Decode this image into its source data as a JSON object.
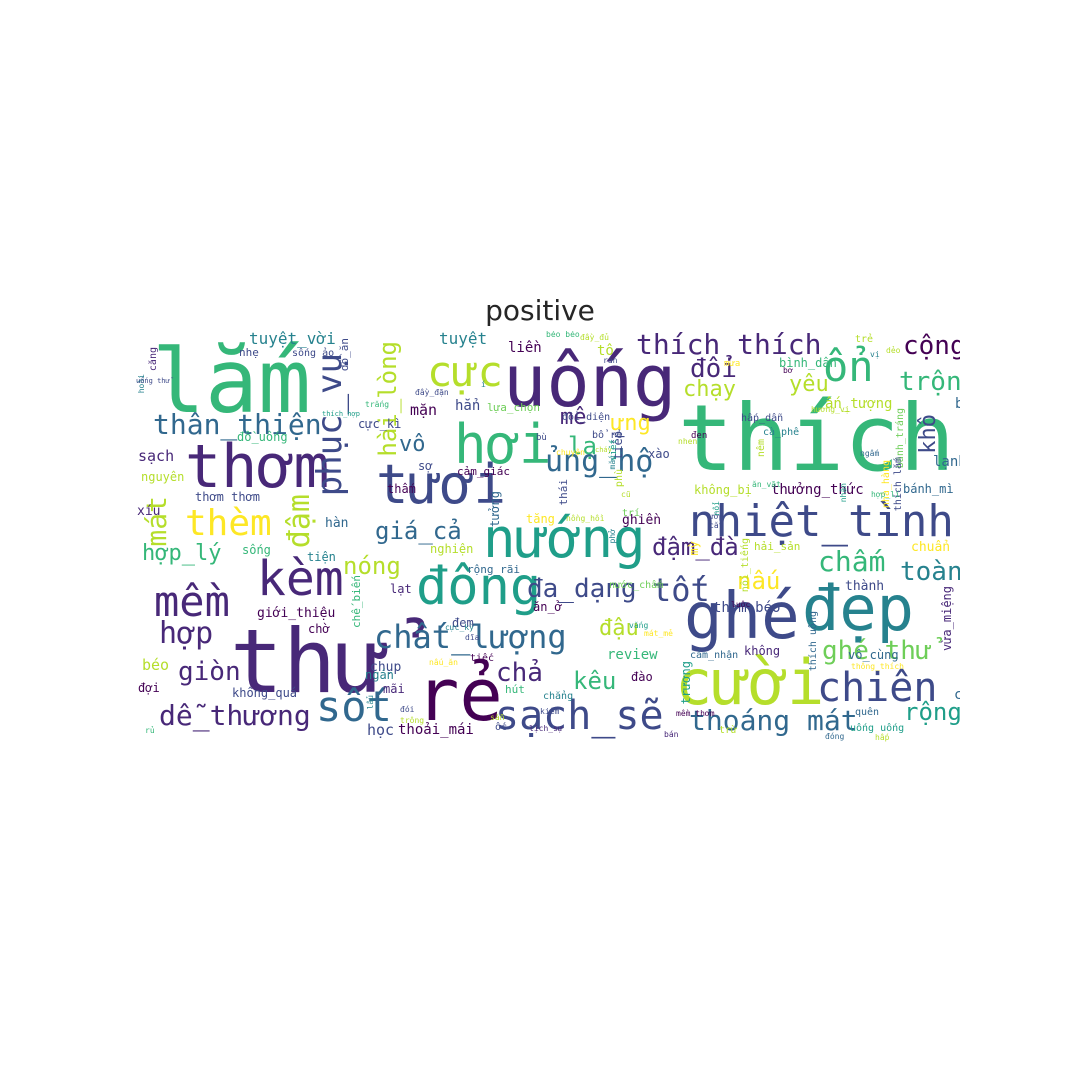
{
  "title": "positive",
  "palette": {
    "dark_purple": "#440154",
    "indigo": "#482878",
    "blue": "#3e4a89",
    "slate": "#31688e",
    "teal": "#26828e",
    "green_teal": "#1f9e89",
    "green": "#35b779",
    "lime_green": "#6ece58",
    "yellow_green": "#b5de2b",
    "yellow": "#fde725"
  },
  "words": [
    {
      "text": "thích",
      "c": "#35b779"
    },
    {
      "text": "thử",
      "c": "#482878"
    },
    {
      "text": "lắm",
      "c": "#35b779"
    },
    {
      "text": "uống",
      "c": "#482878"
    },
    {
      "text": "rẻ",
      "c": "#440154"
    },
    {
      "text": "ghé",
      "c": "#3e4a89"
    },
    {
      "text": "cười",
      "c": "#b5de2b"
    },
    {
      "text": "đẹp",
      "c": "#26828e"
    },
    {
      "text": "thơm",
      "c": "#482878"
    },
    {
      "text": "tươi",
      "c": "#3e4a89"
    },
    {
      "text": "hơi",
      "c": "#35b779"
    },
    {
      "text": "nướng",
      "c": "#1f9e89"
    },
    {
      "text": "đông",
      "c": "#1f9e89"
    },
    {
      "text": "nhiệt_tình",
      "c": "#3e4a89"
    },
    {
      "text": "kèm",
      "c": "#482878"
    },
    {
      "text": "mềm",
      "c": "#482878"
    },
    {
      "text": "sạch_sẽ",
      "c": "#3e4a89"
    },
    {
      "text": "chiên",
      "c": "#3e4a89"
    },
    {
      "text": "sốt",
      "c": "#31688e"
    },
    {
      "text": "phục_vụ",
      "c": "#3e4a89"
    },
    {
      "text": "cực",
      "c": "#b5de2b"
    },
    {
      "text": "thèm",
      "c": "#fde725"
    },
    {
      "text": "ổn",
      "c": "#35b779"
    },
    {
      "text": "chất_lượng",
      "c": "#31688e"
    },
    {
      "text": "thoáng mát",
      "c": "#31688e"
    },
    {
      "text": "thân_thiện",
      "c": "#31688e"
    },
    {
      "text": "ủng_hộ",
      "c": "#31688e"
    },
    {
      "text": "thích thích",
      "c": "#482878"
    },
    {
      "text": "tốt",
      "c": "#3e4a89"
    },
    {
      "text": "đa_dạng",
      "c": "#3e4a89"
    },
    {
      "text": "hài_lòng",
      "c": "#b5de2b"
    },
    {
      "text": "dễ_thương",
      "c": "#482878"
    },
    {
      "text": "hợp",
      "c": "#482878"
    },
    {
      "text": "mát",
      "c": "#b5de2b"
    },
    {
      "text": "đậm",
      "c": "#b5de2b"
    },
    {
      "text": "chả",
      "c": "#482878"
    },
    {
      "text": "giòn",
      "c": "#482878"
    },
    {
      "text": "toàn",
      "c": "#26828e"
    },
    {
      "text": "chấm",
      "c": "#35b779"
    },
    {
      "text": "giá_cả",
      "c": "#31688e"
    },
    {
      "text": "đậm_đà",
      "c": "#482878"
    },
    {
      "text": "cộng",
      "c": "#440154"
    },
    {
      "text": "trộn",
      "c": "#35b779"
    },
    {
      "text": "ghé thử",
      "c": "#6ece58"
    },
    {
      "text": "kêu",
      "c": "#35b779"
    },
    {
      "text": "lạ",
      "c": "#35b779"
    },
    {
      "text": "vô",
      "c": "#31688e"
    },
    {
      "text": "mê",
      "c": "#482878"
    },
    {
      "text": "ưng",
      "c": "#fde725"
    },
    {
      "text": "đổi",
      "c": "#482878"
    },
    {
      "text": "chạy",
      "c": "#b5de2b"
    },
    {
      "text": "yêu",
      "c": "#b5de2b"
    },
    {
      "text": "khô",
      "c": "#3e4a89"
    },
    {
      "text": "nóng",
      "c": "#b5de2b"
    },
    {
      "text": "nấu",
      "c": "#fde725"
    },
    {
      "text": "đậu",
      "c": "#b5de2b"
    },
    {
      "text": "rộng",
      "c": "#1f9e89"
    },
    {
      "text": "hợp_lý",
      "c": "#35b779"
    },
    {
      "text": "tuyệt_vời",
      "c": "#26828e"
    },
    {
      "text": "tuyệt",
      "c": "#26828e"
    },
    {
      "text": "liền",
      "c": "#440154"
    },
    {
      "text": "tô",
      "c": "#b5de2b"
    },
    {
      "text": "bình_dân",
      "c": "#35b779"
    },
    {
      "text": "trẻ",
      "c": "#b5de2b"
    },
    {
      "text": "ấn_tượng",
      "c": "#b5de2b"
    },
    {
      "text": "bảo",
      "c": "#31688e"
    },
    {
      "text": "hẳn",
      "c": "#3e4a89"
    },
    {
      "text": "lựa_chọn",
      "c": "#6ece58"
    },
    {
      "text": "mặn",
      "c": "#440154"
    },
    {
      "text": "thưởng_thức",
      "c": "#440154"
    },
    {
      "text": "lạnh",
      "c": "#31688e"
    },
    {
      "text": "bánh_mì",
      "c": "#31688e"
    },
    {
      "text": "sạch",
      "c": "#482878"
    },
    {
      "text": "nguyên",
      "c": "#b5de2b"
    },
    {
      "text": "thơm thơm",
      "c": "#3e4a89"
    },
    {
      "text": "xíu",
      "c": "#482878"
    },
    {
      "text": "sống",
      "c": "#35b779"
    },
    {
      "text": "tiện",
      "c": "#26828e"
    },
    {
      "text": "hàn",
      "c": "#31688e"
    },
    {
      "text": "giới_thiệu",
      "c": "#440154"
    },
    {
      "text": "chờ",
      "c": "#440154"
    },
    {
      "text": "béo",
      "c": "#b5de2b"
    },
    {
      "text": "đợi",
      "c": "#440154"
    },
    {
      "text": "không_quá",
      "c": "#3e4a89"
    },
    {
      "text": "chụp",
      "c": "#3e4a89"
    },
    {
      "text": "mãi",
      "c": "#482878"
    },
    {
      "text": "học",
      "c": "#3e4a89"
    },
    {
      "text": "thoải_mái",
      "c": "#440154"
    },
    {
      "text": "review",
      "c": "#35b779"
    },
    {
      "text": "đào",
      "c": "#440154"
    },
    {
      "text": "không",
      "c": "#482878"
    },
    {
      "text": "chê",
      "c": "#31688e"
    },
    {
      "text": "quên",
      "c": "#31688e"
    },
    {
      "text": "vừa_miệng",
      "c": "#482878"
    },
    {
      "text": "thành",
      "c": "#3e4a89"
    },
    {
      "text": "chuẩn",
      "c": "#fde725"
    },
    {
      "text": "hải_sản",
      "c": "#b5de2b"
    },
    {
      "text": "ghiền",
      "c": "#440154"
    },
    {
      "text": "không_bị",
      "c": "#b5de2b"
    },
    {
      "text": "nghiện",
      "c": "#b5de2b"
    },
    {
      "text": "rộng_rãi",
      "c": "#31688e"
    },
    {
      "text": "lạt",
      "c": "#482878"
    },
    {
      "text": "ăn_ở",
      "c": "#440154"
    },
    {
      "text": "đem",
      "c": "#3e4a89"
    },
    {
      "text": "xào",
      "c": "#3e4a89"
    },
    {
      "text": "tiếp",
      "c": "#3e4a89"
    },
    {
      "text": "cảm_giác",
      "c": "#440154"
    },
    {
      "text": "thấm",
      "c": "#440154"
    },
    {
      "text": "tăng",
      "c": "#fde725"
    },
    {
      "text": "tưởng",
      "c": "#31688e"
    },
    {
      "text": "sợ",
      "c": "#3e4a89"
    },
    {
      "text": "cực_kì",
      "c": "#3e4a89"
    },
    {
      "text": "đồ_uống",
      "c": "#35b779"
    },
    {
      "text": "đồ_ăn",
      "c": "#3e4a89"
    },
    {
      "text": "chế_biến",
      "c": "#35b779"
    },
    {
      "text": "nhẹ",
      "c": "#3e4a89"
    },
    {
      "text": "sống ảo",
      "c": "#3e4a89"
    },
    {
      "text": "căng",
      "c": "#482878"
    },
    {
      "text": "hoài",
      "c": "#26828e"
    },
    {
      "text": "uống thử",
      "c": "#3e4a89"
    },
    {
      "text": "đầy_đặn",
      "c": "#3e4a89"
    },
    {
      "text": "thích_hợp",
      "c": "#1f9e89"
    },
    {
      "text": "trắng",
      "c": "#35b779"
    },
    {
      "text": "đen",
      "c": "#440154"
    },
    {
      "text": "hấp_dẫn",
      "c": "#3e4a89"
    },
    {
      "text": "cà_phê",
      "c": "#26828e"
    },
    {
      "text": "hương_vị",
      "c": "#b5de2b"
    },
    {
      "text": "bánh_tráng",
      "c": "#6ece58"
    },
    {
      "text": "nêm",
      "c": "#b5de2b"
    },
    {
      "text": "ngấm",
      "c": "#31688e"
    },
    {
      "text": "thích lắm",
      "c": "#3e4a89"
    },
    {
      "text": "nổi_tiếng",
      "c": "#b5de2b"
    },
    {
      "text": "nhà_hàng",
      "c": "#fde725"
    },
    {
      "text": "mỳ",
      "c": "#fde725"
    },
    {
      "text": "thơm béo",
      "c": "#3e4a89"
    },
    {
      "text": "trương",
      "c": "#1f9e89"
    },
    {
      "text": "cảm_nhận",
      "c": "#31688e"
    },
    {
      "text": "thích uống",
      "c": "#31688e"
    },
    {
      "text": "vô_cùng",
      "c": "#31688e"
    },
    {
      "text": "thông_thích",
      "c": "#fde725"
    },
    {
      "text": "đóng",
      "c": "#31688e"
    },
    {
      "text": "uống uống",
      "c": "#1f9e89"
    },
    {
      "text": "hấp",
      "c": "#b5de2b"
    },
    {
      "text": "bán",
      "c": "#482878"
    },
    {
      "text": "trừ",
      "c": "#b5de2b"
    },
    {
      "text": "mềm thơm",
      "c": "#440154"
    },
    {
      "text": "lịch_sự",
      "c": "#482878"
    },
    {
      "text": "kiếm",
      "c": "#3e4a89"
    },
    {
      "text": "ốc",
      "c": "#3e4a89"
    },
    {
      "text": "sẵn",
      "c": "#b5de2b"
    },
    {
      "text": "lẩu",
      "c": "#26828e"
    },
    {
      "text": "trông",
      "c": "#b5de2b"
    },
    {
      "text": "rủ",
      "c": "#35b779"
    },
    {
      "text": "đói",
      "c": "#3e4a89"
    },
    {
      "text": "chẳng",
      "c": "#26828e"
    },
    {
      "text": "hút",
      "c": "#35b779"
    },
    {
      "text": "ngán",
      "c": "#26828e"
    },
    {
      "text": "nấu_ăn",
      "c": "#fde725"
    },
    {
      "text": "tiếc",
      "c": "#440154"
    },
    {
      "text": "dĩa",
      "c": "#3e4a89"
    },
    {
      "text": "cực_kỳ",
      "c": "#26828e"
    },
    {
      "text": "vắng",
      "c": "#1f9e89"
    },
    {
      "text": "mát_mẻ",
      "c": "#fde725"
    },
    {
      "text": "nước_chấm",
      "c": "#6ece58"
    },
    {
      "text": "luộc",
      "c": "#440154"
    },
    {
      "text": "thái",
      "c": "#3e4a89"
    },
    {
      "text": "trí",
      "c": "#6ece58"
    },
    {
      "text": "phù",
      "c": "#b5de2b"
    },
    {
      "text": "mắc",
      "c": "#26828e"
    },
    {
      "text": "nồng_hồi",
      "c": "#b5de2b"
    },
    {
      "text": "cũ",
      "c": "#b5de2b"
    },
    {
      "text": "nhen",
      "c": "#b5de2b"
    },
    {
      "text": "đổi_diện",
      "c": "#3e4a89"
    },
    {
      "text": "bù",
      "c": "#3e4a89"
    },
    {
      "text": "bổ rẻ",
      "c": "#3e4a89"
    },
    {
      "text": "cháy",
      "c": "#b5de2b"
    },
    {
      "text": "chuyện",
      "c": "#fde725"
    },
    {
      "text": "viết",
      "c": "#1f9e89"
    },
    {
      "text": "phở",
      "c": "#26828e"
    },
    {
      "text": "ướp",
      "c": "#3e4a89"
    },
    {
      "text": "cắt",
      "c": "#3e4a89"
    },
    {
      "text": "nổi",
      "c": "#1f9e89"
    },
    {
      "text": "ăn_vặt",
      "c": "#35b779"
    },
    {
      "text": "nhận",
      "c": "#1f9e89"
    },
    {
      "text": "hợp_lí",
      "c": "#35b779"
    },
    {
      "text": "béo béo",
      "c": "#35b779"
    },
    {
      "text": "đầy_đủ",
      "c": "#b5de2b"
    },
    {
      "text": "rán",
      "c": "#3e4a89"
    },
    {
      "text": "mưa",
      "c": "#fde725"
    },
    {
      "text": "bơ",
      "c": "#440154"
    },
    {
      "text": "vị",
      "c": "#26828e"
    },
    {
      "text": "dẻo",
      "c": "#b5de2b"
    },
    {
      "text": "í",
      "c": "#26828e"
    }
  ]
}
